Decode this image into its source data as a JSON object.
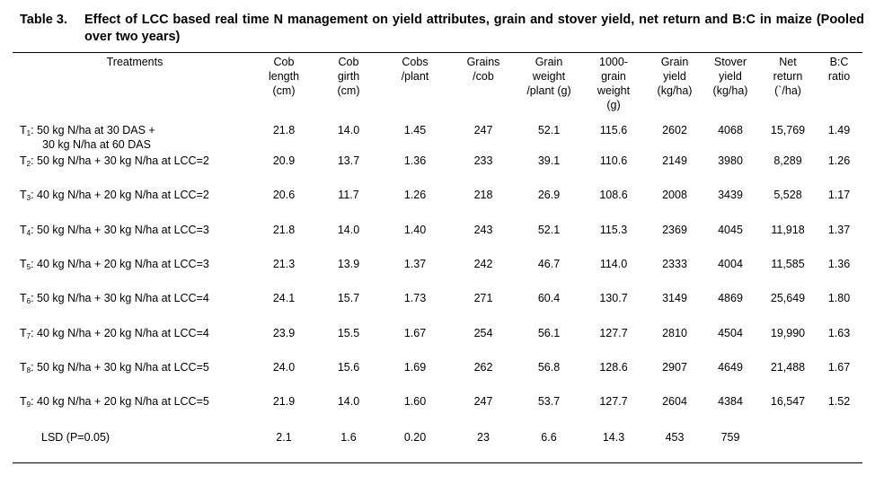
{
  "caption": {
    "label": "Table 3.",
    "text": "Effect of LCC based real time N management on yield attributes, grain and stover yield, net return and B:C in maize (Pooled over two years)"
  },
  "headers": [
    "Treatments",
    "Cob\nlength\n(cm)",
    "Cob\ngirth\n(cm)",
    "Cobs\n/plant",
    "Grains\n/cob",
    "Grain\nweight\n/plant (g)",
    "1000-\ngrain\nweight\n(g)",
    "Grain\nyield\n(kg/ha)",
    "Stover\nyield\n(kg/ha)",
    "Net\nreturn\n(`/ha)",
    "B:C\nratio"
  ],
  "rows": [
    {
      "prefix": "T",
      "sub": "1",
      "text": ": 50 kg N/ha at 30 DAS +",
      "text2": "30 kg N/ha at 60 DAS",
      "values": [
        "21.8",
        "14.0",
        "1.45",
        "247",
        "52.1",
        "115.6",
        "2602",
        "4068",
        "15,769",
        "1.49"
      ]
    },
    {
      "prefix": "T",
      "sub": "2",
      "text": ": 50 kg N/ha + 30 kg N/ha at LCC=2",
      "text2": "",
      "values": [
        "20.9",
        "13.7",
        "1.36",
        "233",
        "39.1",
        "110.6",
        "2149",
        "3980",
        "8,289",
        "1.26"
      ]
    },
    {
      "prefix": "T",
      "sub": "3",
      "text": ": 40 kg N/ha + 20 kg N/ha at LCC=2",
      "text2": "",
      "values": [
        "20.6",
        "11.7",
        "1.26",
        "218",
        "26.9",
        "108.6",
        "2008",
        "3439",
        "5,528",
        "1.17"
      ]
    },
    {
      "prefix": "T",
      "sub": "4",
      "text": ": 50 kg N/ha + 30 kg N/ha at LCC=3",
      "text2": "",
      "values": [
        "21.8",
        "14.0",
        "1.40",
        "243",
        "52.1",
        "115.3",
        "2369",
        "4045",
        "11,918",
        "1.37"
      ]
    },
    {
      "prefix": "T",
      "sub": "5",
      "text": ": 40 kg N/ha + 20 kg N/ha at LCC=3",
      "text2": "",
      "values": [
        "21.3",
        "13.9",
        "1.37",
        "242",
        "46.7",
        "114.0",
        "2333",
        "4004",
        "11,585",
        "1.36"
      ]
    },
    {
      "prefix": "T",
      "sub": "6",
      "text": ": 50 kg N/ha + 30 kg N/ha at LCC=4",
      "text2": "",
      "values": [
        "24.1",
        "15.7",
        "1.73",
        "271",
        "60.4",
        "130.7",
        "3149",
        "4869",
        "25,649",
        "1.80"
      ]
    },
    {
      "prefix": "T",
      "sub": "7",
      "text": ": 40 kg N/ha + 20 kg N/ha at LCC=4",
      "text2": "",
      "values": [
        "23.9",
        "15.5",
        "1.67",
        "254",
        "56.1",
        "127.7",
        "2810",
        "4504",
        "19,990",
        "1.63"
      ]
    },
    {
      "prefix": "T",
      "sub": "8",
      "text": ": 50 kg N/ha + 30 kg N/ha at LCC=5",
      "text2": "",
      "values": [
        "24.0",
        "15.6",
        "1.69",
        "262",
        "56.8",
        "128.6",
        "2907",
        "4649",
        "21,488",
        "1.67"
      ]
    },
    {
      "prefix": "T",
      "sub": "9",
      "text": ": 40 kg N/ha + 20 kg N/ha at LCC=5",
      "text2": "",
      "values": [
        "21.9",
        "14.0",
        "1.60",
        "247",
        "53.7",
        "127.7",
        "2604",
        "4384",
        "16,547",
        "1.52"
      ]
    },
    {
      "prefix": "",
      "sub": "",
      "text": "LSD (P=0.05)",
      "text2": "",
      "values": [
        "2.1",
        "1.6",
        "0.20",
        "23",
        "6.6",
        "14.3",
        "453",
        "759",
        "",
        ""
      ]
    }
  ]
}
